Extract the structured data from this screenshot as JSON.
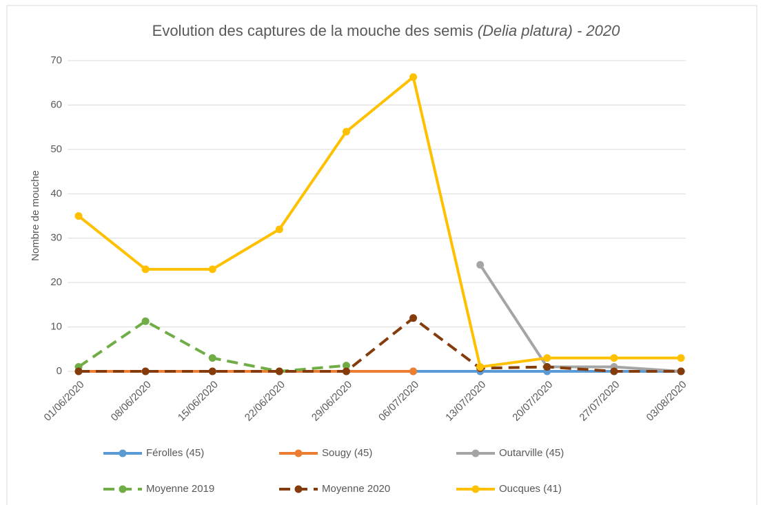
{
  "chart_data": {
    "type": "line",
    "title": [
      "Evolution des captures de la mouche des semis",
      "(Delia platura) - 2020"
    ],
    "y_label": "Nombre de mouche",
    "categories": [
      "01/06/2020",
      "08/06/2020",
      "15/06/2020",
      "22/06/2020",
      "29/06/2020",
      "06/07/2020",
      "13/07/2020",
      "20/07/2020",
      "27/07/2020",
      "03/08/2020"
    ],
    "ylim": [
      0,
      70
    ],
    "yticks": [
      0,
      10,
      20,
      30,
      40,
      50,
      60,
      70
    ],
    "grid": true,
    "legend": "bottom",
    "series": [
      {
        "name": "Férolles (45)",
        "color": "#5b9bd5",
        "dashed": false,
        "values": [
          null,
          null,
          null,
          null,
          null,
          0,
          0,
          0,
          0,
          0
        ]
      },
      {
        "name": "Sougy (45)",
        "color": "#ed7d31",
        "dashed": false,
        "values": [
          0,
          0,
          0,
          0,
          0,
          0,
          null,
          null,
          null,
          null
        ]
      },
      {
        "name": "Outarville (45)",
        "color": "#a5a5a5",
        "dashed": false,
        "values": [
          null,
          null,
          null,
          null,
          null,
          null,
          24,
          1,
          1,
          0
        ]
      },
      {
        "name": "Moyenne 2019",
        "color": "#70ad47",
        "dashed": true,
        "values": [
          1,
          11.3,
          3,
          0,
          1.3,
          null,
          null,
          null,
          null,
          null
        ]
      },
      {
        "name": "Moyenne 2020",
        "color": "#843c0c",
        "dashed": true,
        "values": [
          0,
          0,
          0,
          0,
          0,
          12,
          0.7,
          1,
          0,
          0
        ]
      },
      {
        "name": "Oucques (41)",
        "color": "#ffc000",
        "dashed": false,
        "values": [
          35,
          23,
          23,
          32,
          54,
          66.3,
          1,
          3,
          3,
          3
        ]
      }
    ]
  }
}
